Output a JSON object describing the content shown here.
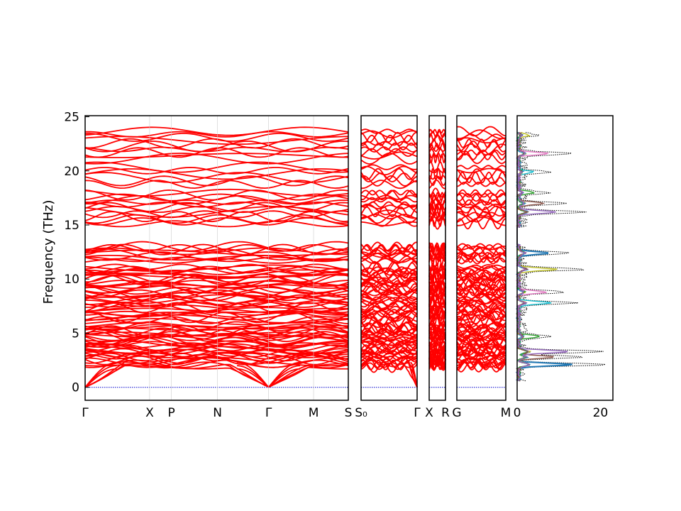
{
  "chart_data": {
    "type": "line",
    "ylabel": "Frequency (THz)",
    "ylim": [
      -1.2,
      25.1
    ],
    "yticks": [
      0,
      5,
      10,
      15,
      20,
      25
    ],
    "grid": false,
    "legend": "none",
    "band_color": "#ff0000",
    "zero_line_color": "#0000cc",
    "panels": [
      {
        "name": "path-1",
        "kpoint_labels": [
          {
            "label": "Γ",
            "pos": 0
          },
          {
            "label": "X",
            "pos": 0.245
          },
          {
            "label": "P",
            "pos": 0.328
          },
          {
            "label": "N",
            "pos": 0.503
          },
          {
            "label": "Γ",
            "pos": 0.697
          },
          {
            "label": "M",
            "pos": 0.868
          },
          {
            "label": "S",
            "pos": 1
          }
        ]
      },
      {
        "name": "path-2",
        "kpoint_labels": [
          {
            "label": "S₀",
            "pos": 0
          },
          {
            "label": "Γ",
            "pos": 1
          }
        ]
      },
      {
        "name": "path-3",
        "kpoint_labels": [
          {
            "label": "X",
            "pos": 0
          },
          {
            "label": "R",
            "pos": 1
          }
        ]
      },
      {
        "name": "path-4",
        "kpoint_labels": [
          {
            "label": "G",
            "pos": 0
          },
          {
            "label": "M",
            "pos": 1
          }
        ]
      }
    ],
    "acoustic_band_max_near_gamma": 2.3,
    "band_groups": [
      {
        "range": [
          1.8,
          5.8
        ],
        "approx_count": 38
      },
      {
        "range": [
          6.0,
          11.2
        ],
        "approx_count": 40
      },
      {
        "range": [
          11.6,
          13.1
        ],
        "approx_count": 10
      },
      {
        "range": [
          15.0,
          18.1
        ],
        "approx_count": 14
      },
      {
        "range": [
          18.6,
          20.5
        ],
        "approx_count": 6
      },
      {
        "range": [
          21.0,
          23.8
        ],
        "approx_count": 10
      }
    ],
    "dos": {
      "xlim": [
        0,
        23
      ],
      "xticks": [
        0,
        20
      ],
      "total_color": "#000000",
      "partial_colors": [
        "#1f77b4",
        "#bcbd22",
        "#e377c2",
        "#17becf",
        "#2ca02c",
        "#8c564b",
        "#9467bd"
      ],
      "total_peaks": [
        {
          "freq": 2.1,
          "value": 21
        },
        {
          "freq": 3.3,
          "value": 20
        },
        {
          "freq": 2.8,
          "value": 14
        },
        {
          "freq": 4.7,
          "value": 8
        },
        {
          "freq": 7.8,
          "value": 13
        },
        {
          "freq": 8.8,
          "value": 11
        },
        {
          "freq": 10.9,
          "value": 15
        },
        {
          "freq": 12.4,
          "value": 12
        },
        {
          "freq": 16.2,
          "value": 15
        },
        {
          "freq": 17.0,
          "value": 10
        },
        {
          "freq": 18.0,
          "value": 6
        },
        {
          "freq": 19.9,
          "value": 6
        },
        {
          "freq": 21.6,
          "value": 12
        },
        {
          "freq": 23.3,
          "value": 4
        }
      ]
    }
  }
}
